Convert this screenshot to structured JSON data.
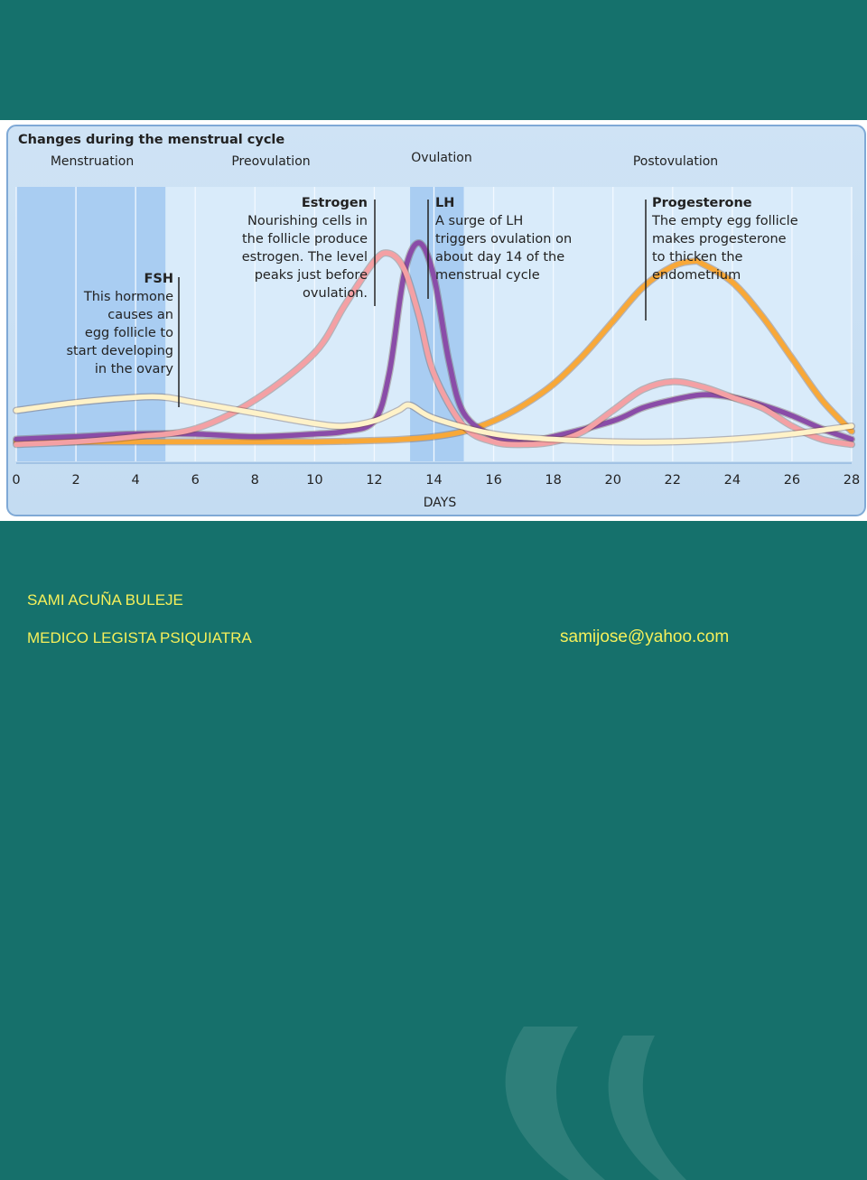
{
  "chart_data": {
    "type": "line",
    "title": "Changes during the menstrual cycle",
    "xlabel": "DAYS",
    "xlim": [
      0,
      28
    ],
    "x_ticks": [
      "0",
      "2",
      "4",
      "6",
      "8",
      "10",
      "12",
      "14",
      "16",
      "18",
      "20",
      "22",
      "24",
      "26",
      "28"
    ],
    "phases": [
      "Menstruation",
      "Preovulation",
      "Ovulation",
      "Postovulation"
    ],
    "shaded_ranges": [
      {
        "phase": "Menstruation",
        "from": 0,
        "to": 5
      },
      {
        "phase": "Ovulation",
        "from": 13.2,
        "to": 15
      }
    ],
    "series": [
      {
        "name": "FSH",
        "color": "#fff2c8",
        "x": [
          0,
          2,
          4,
          5,
          6,
          8,
          10,
          11,
          12,
          12.8,
          13.2,
          14,
          16,
          18,
          20,
          22,
          24,
          26,
          28
        ],
        "y": [
          16,
          19,
          21,
          21,
          19,
          15,
          11,
          10,
          12,
          16,
          18,
          13,
          7,
          5,
          4,
          4,
          5,
          7,
          10
        ]
      },
      {
        "name": "Estrogen",
        "color": "#f4a0a4",
        "x": [
          0,
          2,
          4,
          6,
          8,
          10,
          11,
          12,
          12.5,
          13,
          13.5,
          14,
          15,
          16,
          17,
          18,
          19,
          20,
          21,
          22,
          23,
          24,
          25,
          26,
          27,
          28
        ],
        "y": [
          3,
          4,
          6,
          9,
          20,
          38,
          56,
          73,
          76,
          70,
          52,
          30,
          10,
          4,
          3,
          4,
          8,
          16,
          24,
          27,
          25,
          21,
          17,
          10,
          5,
          3
        ]
      },
      {
        "name": "LH",
        "color": "#8a4ca8",
        "x": [
          0,
          2,
          4,
          6,
          8,
          10,
          11,
          12,
          12.5,
          13,
          13.5,
          14,
          14.5,
          15,
          16,
          17,
          18,
          20,
          21,
          22,
          23,
          24,
          25,
          26,
          27,
          28
        ],
        "y": [
          5,
          6,
          7,
          7,
          6,
          7,
          8,
          12,
          30,
          68,
          80,
          67,
          35,
          15,
          6,
          4,
          6,
          12,
          17,
          20,
          22,
          21,
          18,
          14,
          9,
          5
        ]
      },
      {
        "name": "Progesterone",
        "color": "#f8a838",
        "x": [
          0,
          2,
          4,
          6,
          8,
          10,
          12,
          13,
          14,
          15,
          16,
          17,
          18,
          19,
          20,
          21,
          22,
          22.7,
          23,
          24,
          25,
          26,
          27,
          28
        ],
        "y": [
          4,
          4,
          4,
          4,
          4,
          4,
          4.5,
          5,
          6,
          8,
          12,
          18,
          26,
          37,
          50,
          63,
          71,
          73,
          72,
          65,
          52,
          36,
          20,
          8
        ]
      }
    ],
    "annotations": [
      {
        "series": "FSH",
        "title": "FSH",
        "lines": [
          "This hormone",
          "causes an",
          "egg follicle to",
          "start developing",
          "in the ovary"
        ]
      },
      {
        "series": "Estrogen",
        "title": "Estrogen",
        "lines": [
          "Nourishing cells in",
          "the follicle produce",
          "estrogen. The level",
          "peaks just before",
          "ovulation."
        ]
      },
      {
        "series": "LH",
        "title": "LH",
        "lines": [
          "A surge of LH",
          "triggers ovulation on",
          "about day 14 of the",
          "menstrual cycle"
        ]
      },
      {
        "series": "Progesterone",
        "title": "Progesterone",
        "lines": [
          "The empty egg follicle",
          "makes progesterone",
          "to thicken the",
          "endometrium"
        ]
      }
    ],
    "grid": true,
    "legend": "none"
  },
  "footer": {
    "name": "SAMI ACUÑA BULEJE",
    "title": "MEDICO LEGISTA  PSIQUIATRA",
    "email": "samijose@yahoo.com"
  }
}
